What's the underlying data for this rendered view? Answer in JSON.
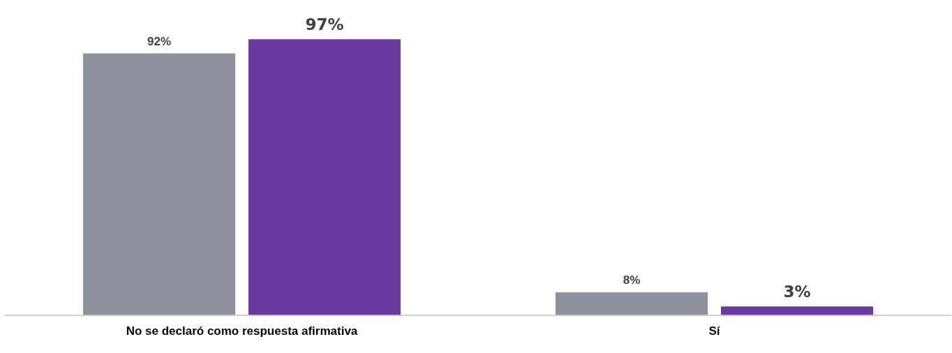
{
  "chart_data": {
    "type": "bar",
    "categories": [
      "No se declaró como respuesta afirmativa",
      "Sí"
    ],
    "series": [
      {
        "color": "#8e929c",
        "values": [
          92,
          8
        ],
        "value_labels": [
          "92%",
          "8%"
        ]
      },
      {
        "color": "#6a3a9e",
        "values": [
          97,
          3
        ],
        "value_labels": [
          "97%",
          "3%"
        ]
      }
    ],
    "grid": false,
    "legend": false,
    "tick_labels": "x"
  }
}
